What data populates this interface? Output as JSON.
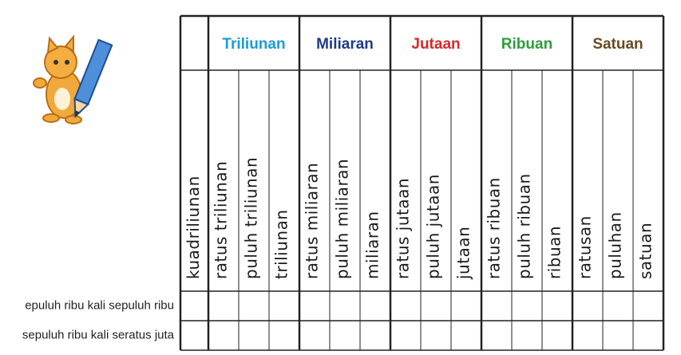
{
  "table": {
    "first_column": "kuadriliunan",
    "groups": [
      {
        "name": "Triliunan",
        "color": "#1b9bd7",
        "columns": [
          "ratus triliunan",
          "puluh triliunan",
          "triliunan"
        ]
      },
      {
        "name": "Miliaran",
        "color": "#1f3a8a",
        "columns": [
          "ratus miliaran",
          "puluh miliaran",
          "miliaran"
        ]
      },
      {
        "name": "Jutaan",
        "color": "#d42a2a",
        "columns": [
          "ratus jutaan",
          "puluh jutaan",
          "jutaan"
        ]
      },
      {
        "name": "Ribuan",
        "color": "#2f9d3c",
        "columns": [
          "ratus ribuan",
          "puluh ribuan",
          "ribuan"
        ]
      },
      {
        "name": "Satuan",
        "color": "#6a4a20",
        "columns": [
          "ratusan",
          "puluhan",
          "satuan"
        ]
      }
    ],
    "rows": [
      "epuluh ribu kali sepuluh ribu",
      "sepuluh ribu kali seratus juta"
    ]
  }
}
